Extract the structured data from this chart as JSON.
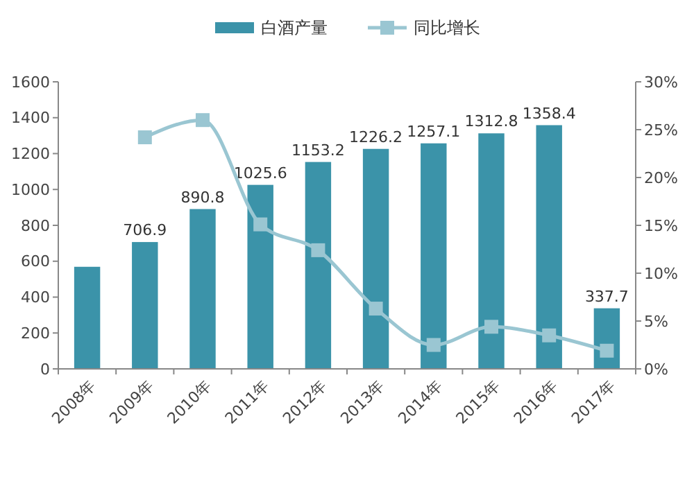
{
  "chart_data": {
    "type": "bar",
    "categories": [
      "2008年",
      "2009年",
      "2010年",
      "2011年",
      "2012年",
      "2013年",
      "2014年",
      "2015年",
      "2016年",
      "2017年"
    ],
    "series": [
      {
        "name": "白酒产量",
        "color": "#3b93a9",
        "values": [
          569,
          706.9,
          890.8,
          1025.6,
          1153.2,
          1226.2,
          1257.1,
          1312.8,
          1358.4,
          337.7
        ],
        "value_labels": [
          null,
          "706.9",
          "890.8",
          "1025.6",
          "1153.2",
          "1226.2",
          "1257.1",
          "1312.8",
          "1358.4",
          "337.7"
        ]
      },
      {
        "name": "同比增长",
        "type": "line",
        "axis": "y2",
        "color": "#9ac6d2",
        "marker": "square",
        "values": [
          null,
          24.2,
          26,
          15.1,
          12.4,
          6.3,
          2.5,
          4.4,
          3.5,
          1.9
        ]
      }
    ],
    "ylim": [
      0,
      1600
    ],
    "yticks": [
      0,
      200,
      400,
      600,
      800,
      1000,
      1200,
      1400,
      1600
    ],
    "y2lim": [
      0,
      30
    ],
    "y2ticks": [
      {
        "value": 0,
        "label": "0%"
      },
      {
        "value": 5,
        "label": "5%"
      },
      {
        "value": 10,
        "label": "10%"
      },
      {
        "value": 15,
        "label": "15%"
      },
      {
        "value": 20,
        "label": "20%"
      },
      {
        "value": 25,
        "label": "25%"
      },
      {
        "value": 30,
        "label": "30%"
      }
    ],
    "grid": false,
    "legend": "top"
  }
}
